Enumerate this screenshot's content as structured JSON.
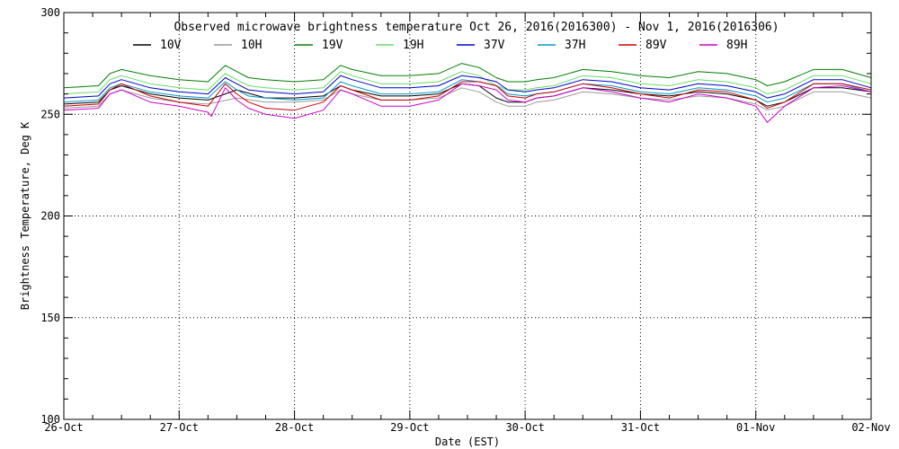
{
  "chart_data": {
    "type": "line",
    "title": "Observed microwave brightness temperature Oct 26, 2016(2016300) - Nov  1, 2016(2016306)",
    "xlabel": "Date (EST)",
    "ylabel": "Brightness Temperature, Deg K",
    "ylim": [
      100,
      300
    ],
    "xlim": [
      0,
      7
    ],
    "yticks": [
      100,
      150,
      200,
      250,
      300
    ],
    "xticks": [
      0,
      1,
      2,
      3,
      4,
      5,
      6,
      7
    ],
    "xtick_labels": [
      "26-Oct",
      "27-Oct",
      "28-Oct",
      "29-Oct",
      "30-Oct",
      "31-Oct",
      "01-Nov",
      "02-Nov"
    ],
    "grid": true,
    "legend_position": "top",
    "series": [
      {
        "name": "10V",
        "color": "#000000",
        "x": [
          0,
          0.3,
          0.4,
          0.5,
          0.75,
          1.0,
          1.25,
          1.5,
          1.75,
          2.0,
          2.25,
          2.4,
          2.5,
          2.75,
          3.0,
          3.25,
          3.45,
          3.6,
          3.75,
          3.85,
          4.0,
          4.1,
          4.25,
          4.5,
          4.75,
          5.0,
          5.25,
          5.5,
          5.75,
          6.0,
          6.1,
          6.25,
          6.5,
          6.75,
          7.0
        ],
        "y": [
          255,
          256,
          262,
          264,
          260,
          258,
          257,
          262,
          258,
          258,
          259,
          264,
          262,
          259,
          259,
          260,
          265,
          264,
          258,
          256,
          256,
          258,
          259,
          263,
          262,
          260,
          259,
          261,
          260,
          257,
          254,
          256,
          263,
          263,
          261
        ]
      },
      {
        "name": "10H",
        "color": "#9a9a9a",
        "x": [
          0,
          0.3,
          0.4,
          0.5,
          0.75,
          1.0,
          1.25,
          1.5,
          1.75,
          2.0,
          2.25,
          2.4,
          2.5,
          2.75,
          3.0,
          3.25,
          3.45,
          3.6,
          3.75,
          3.85,
          4.0,
          4.1,
          4.25,
          4.5,
          4.75,
          5.0,
          5.25,
          5.5,
          5.75,
          6.0,
          6.1,
          6.25,
          6.5,
          6.75,
          7.0
        ],
        "y": [
          253,
          254,
          260,
          262,
          258,
          256,
          255,
          258,
          256,
          256,
          257,
          262,
          260,
          257,
          257,
          258,
          263,
          261,
          256,
          254,
          254,
          256,
          257,
          261,
          260,
          258,
          257,
          259,
          258,
          255,
          252,
          254,
          261,
          261,
          258
        ]
      },
      {
        "name": "19V",
        "color": "#008000",
        "x": [
          0,
          0.3,
          0.4,
          0.5,
          0.75,
          1.0,
          1.25,
          1.4,
          1.5,
          1.6,
          1.75,
          2.0,
          2.25,
          2.4,
          2.5,
          2.75,
          3.0,
          3.25,
          3.45,
          3.6,
          3.75,
          3.85,
          4.0,
          4.1,
          4.25,
          4.5,
          4.75,
          5.0,
          5.25,
          5.5,
          5.75,
          6.0,
          6.1,
          6.25,
          6.5,
          6.75,
          7.0
        ],
        "y": [
          263,
          264,
          270,
          272,
          269,
          267,
          266,
          274,
          271,
          268,
          267,
          266,
          267,
          274,
          272,
          269,
          269,
          270,
          275,
          273,
          268,
          266,
          266,
          267,
          268,
          272,
          271,
          269,
          268,
          271,
          270,
          267,
          264,
          266,
          272,
          272,
          268
        ]
      },
      {
        "name": "19H",
        "color": "#66dd66",
        "x": [
          0,
          0.3,
          0.4,
          0.5,
          0.75,
          1.0,
          1.25,
          1.4,
          1.5,
          1.6,
          1.75,
          2.0,
          2.25,
          2.4,
          2.5,
          2.75,
          3.0,
          3.25,
          3.45,
          3.6,
          3.75,
          3.85,
          4.0,
          4.1,
          4.25,
          4.5,
          4.75,
          5.0,
          5.25,
          5.5,
          5.75,
          6.0,
          6.1,
          6.25,
          6.5,
          6.75,
          7.0
        ],
        "y": [
          260,
          261,
          267,
          269,
          265,
          263,
          262,
          270,
          267,
          264,
          263,
          262,
          263,
          271,
          269,
          265,
          265,
          266,
          271,
          269,
          264,
          262,
          262,
          263,
          264,
          269,
          268,
          265,
          264,
          267,
          266,
          263,
          260,
          262,
          269,
          269,
          265
        ]
      },
      {
        "name": "37V",
        "color": "#0000cc",
        "x": [
          0,
          0.3,
          0.4,
          0.5,
          0.75,
          1.0,
          1.25,
          1.4,
          1.5,
          1.6,
          1.75,
          2.0,
          2.25,
          2.4,
          2.5,
          2.75,
          3.0,
          3.25,
          3.45,
          3.6,
          3.75,
          3.85,
          4.0,
          4.1,
          4.25,
          4.5,
          4.75,
          5.0,
          5.25,
          5.5,
          5.75,
          6.0,
          6.1,
          6.25,
          6.5,
          6.75,
          7.0
        ],
        "y": [
          258,
          259,
          265,
          267,
          263,
          261,
          260,
          268,
          265,
          262,
          261,
          260,
          261,
          269,
          267,
          263,
          263,
          264,
          269,
          268,
          266,
          262,
          261,
          262,
          263,
          267,
          266,
          263,
          262,
          265,
          264,
          261,
          258,
          260,
          267,
          267,
          263
        ]
      },
      {
        "name": "37H",
        "color": "#0099cc",
        "x": [
          0,
          0.3,
          0.4,
          0.5,
          0.75,
          1.0,
          1.25,
          1.4,
          1.5,
          1.6,
          1.75,
          2.0,
          2.25,
          2.4,
          2.5,
          2.75,
          3.0,
          3.25,
          3.45,
          3.6,
          3.75,
          3.85,
          4.0,
          4.1,
          4.25,
          4.5,
          4.75,
          5.0,
          5.25,
          5.5,
          5.75,
          6.0,
          6.1,
          6.25,
          6.5,
          6.75,
          7.0
        ],
        "y": [
          256,
          257,
          263,
          265,
          261,
          259,
          258,
          266,
          262,
          259,
          258,
          257,
          258,
          266,
          264,
          260,
          260,
          261,
          267,
          266,
          264,
          260,
          259,
          260,
          261,
          265,
          264,
          261,
          260,
          263,
          262,
          259,
          256,
          258,
          265,
          265,
          261
        ]
      },
      {
        "name": "89V",
        "color": "#cc0000",
        "x": [
          0,
          0.3,
          0.4,
          0.5,
          0.75,
          1.0,
          1.25,
          1.4,
          1.5,
          1.6,
          1.75,
          2.0,
          2.25,
          2.4,
          2.5,
          2.75,
          3.0,
          3.25,
          3.45,
          3.6,
          3.75,
          3.85,
          4.0,
          4.1,
          4.25,
          4.5,
          4.75,
          5.0,
          5.25,
          5.5,
          5.75,
          6.0,
          6.1,
          6.25,
          6.5,
          6.75,
          7.0
        ],
        "y": [
          254,
          255,
          262,
          265,
          259,
          256,
          254,
          265,
          260,
          256,
          253,
          252,
          256,
          264,
          262,
          257,
          257,
          259,
          266,
          266,
          264,
          259,
          258,
          260,
          261,
          265,
          263,
          260,
          258,
          262,
          261,
          257,
          253,
          256,
          265,
          265,
          262
        ]
      },
      {
        "name": "89H",
        "color": "#cc00cc",
        "x": [
          0,
          0.3,
          0.4,
          0.5,
          0.75,
          1.0,
          1.25,
          1.28,
          1.4,
          1.5,
          1.6,
          1.75,
          2.0,
          2.25,
          2.4,
          2.5,
          2.75,
          3.0,
          3.25,
          3.45,
          3.6,
          3.75,
          3.85,
          4.0,
          4.1,
          4.25,
          4.5,
          4.75,
          5.0,
          5.25,
          5.5,
          5.75,
          6.0,
          6.1,
          6.25,
          6.5,
          6.75,
          7.0
        ],
        "y": [
          252,
          253,
          260,
          262,
          256,
          254,
          251,
          249,
          263,
          257,
          253,
          250,
          248,
          252,
          262,
          260,
          254,
          254,
          257,
          265,
          264,
          262,
          257,
          256,
          258,
          259,
          263,
          261,
          258,
          256,
          260,
          258,
          254,
          246,
          254,
          263,
          264,
          261
        ]
      }
    ]
  }
}
